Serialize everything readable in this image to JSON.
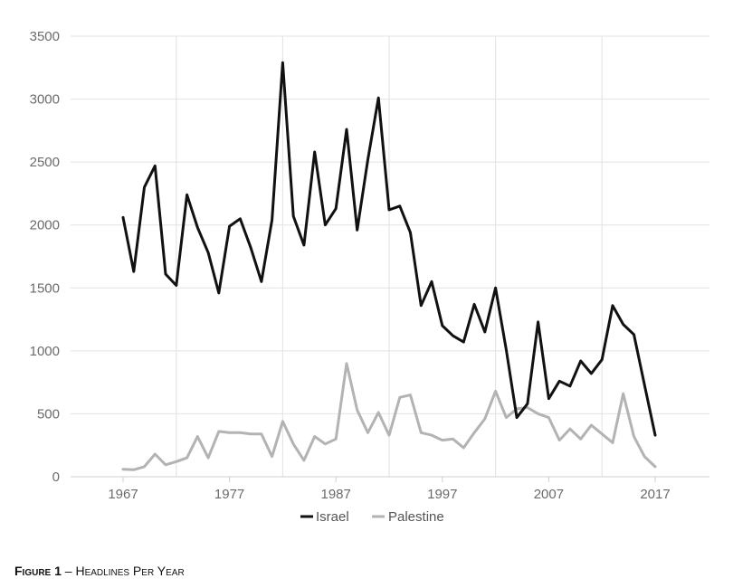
{
  "chart_data": {
    "type": "line",
    "title": "",
    "xlabel": "",
    "ylabel": "",
    "ylim": [
      0,
      3500
    ],
    "xlim": [
      1967,
      2017
    ],
    "y_ticks": [
      "0",
      "500",
      "1000",
      "1500",
      "2000",
      "2500",
      "3000",
      "3500"
    ],
    "x_ticks": [
      "1967",
      "1977",
      "1987",
      "1997",
      "2007",
      "2017"
    ],
    "grid": true,
    "legend_position": "bottom",
    "x": [
      1967,
      1968,
      1969,
      1970,
      1971,
      1972,
      1973,
      1974,
      1975,
      1976,
      1977,
      1978,
      1979,
      1980,
      1981,
      1982,
      1983,
      1984,
      1985,
      1986,
      1987,
      1988,
      1989,
      1990,
      1991,
      1992,
      1993,
      1994,
      1995,
      1996,
      1997,
      1998,
      1999,
      2000,
      2001,
      2002,
      2003,
      2004,
      2005,
      2006,
      2007,
      2008,
      2009,
      2010,
      2011,
      2012,
      2013,
      2014,
      2015,
      2016,
      2017
    ],
    "series": [
      {
        "name": "Israel",
        "color": "#111111",
        "values": [
          2060,
          1630,
          2300,
          2470,
          1610,
          1520,
          2240,
          1980,
          1780,
          1460,
          1990,
          2050,
          1820,
          1550,
          2040,
          3290,
          2070,
          1840,
          2580,
          2000,
          2130,
          2760,
          1960,
          2520,
          3010,
          2120,
          2150,
          1940,
          1360,
          1550,
          1200,
          1120,
          1070,
          1370,
          1150,
          1500,
          1010,
          470,
          580,
          1230,
          620,
          760,
          720,
          920,
          820,
          930,
          1360,
          1210,
          1130,
          730,
          330
        ]
      },
      {
        "name": "Palestine",
        "color": "#b3b3b3",
        "values": [
          60,
          55,
          80,
          180,
          95,
          120,
          150,
          320,
          150,
          360,
          350,
          350,
          340,
          340,
          160,
          440,
          260,
          130,
          320,
          260,
          300,
          900,
          530,
          350,
          510,
          330,
          630,
          650,
          350,
          330,
          290,
          300,
          230,
          350,
          460,
          680,
          470,
          540,
          550,
          500,
          470,
          290,
          380,
          300,
          410,
          340,
          270,
          660,
          320,
          160,
          80
        ]
      }
    ]
  },
  "caption": {
    "lead": "Figure 1",
    "rest": " – Headlines Per Year"
  }
}
